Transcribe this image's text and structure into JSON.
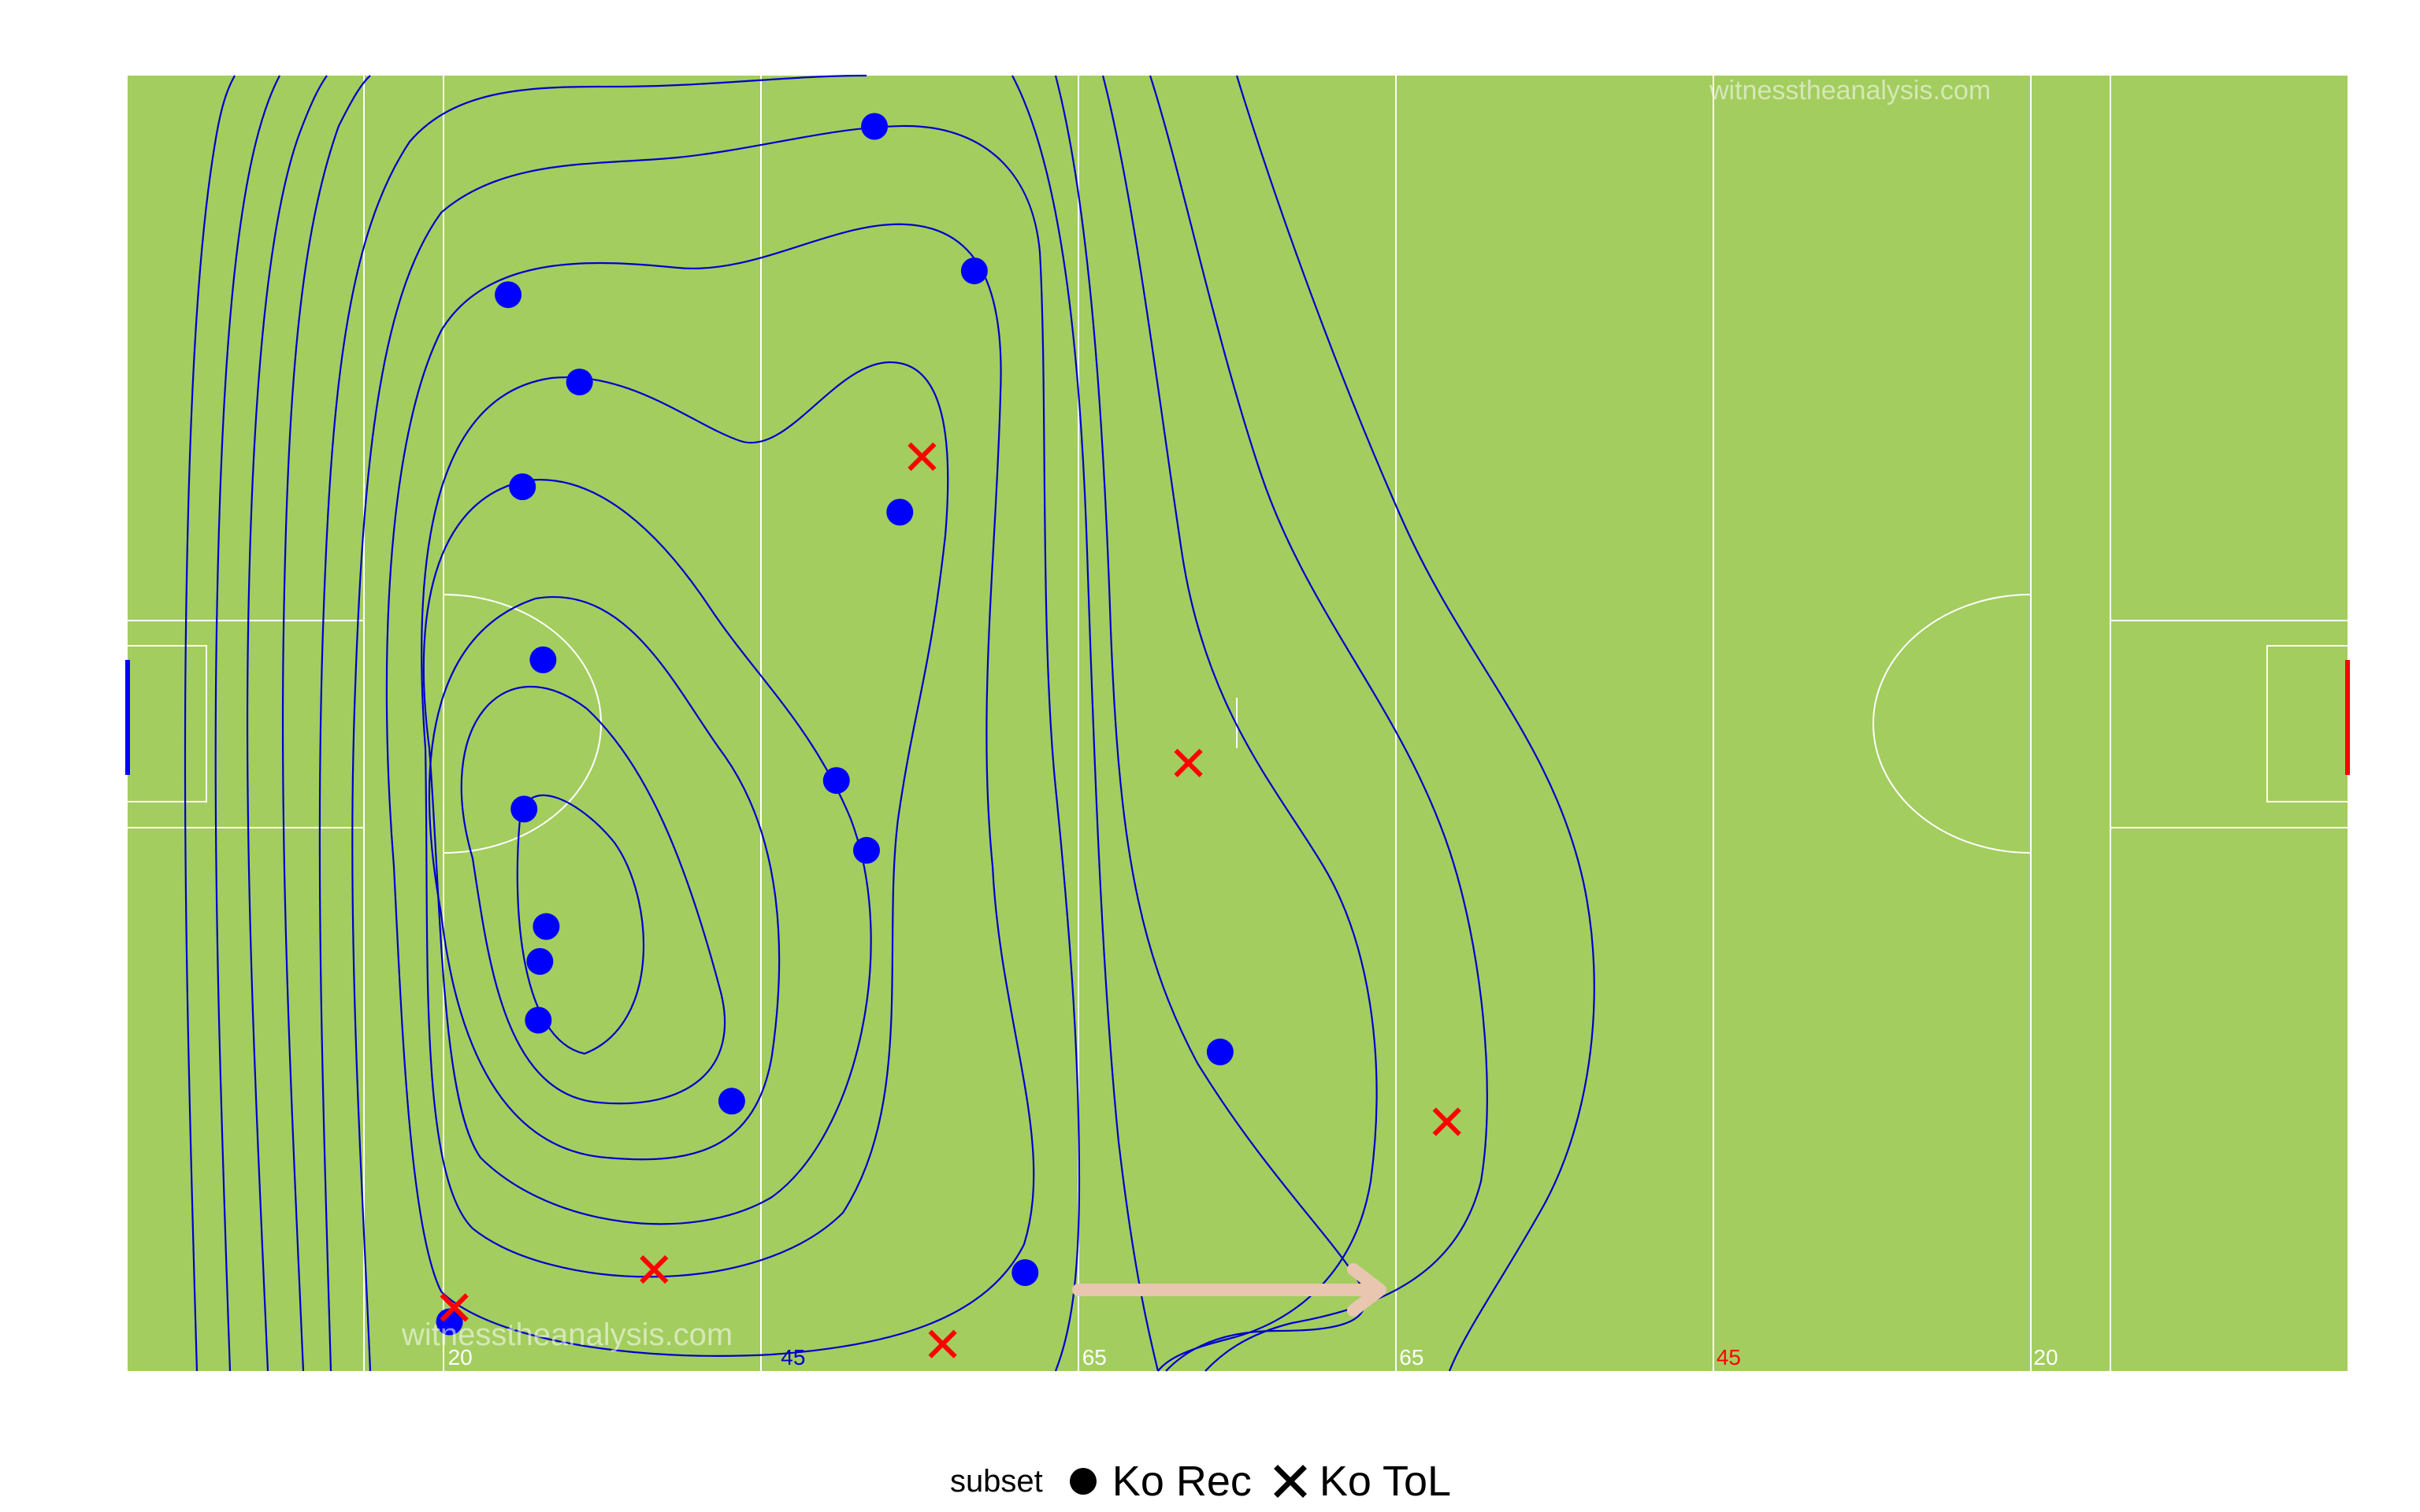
{
  "chart_data": {
    "type": "scatter",
    "title": "",
    "xlabel": "",
    "ylabel": "",
    "xlim": [
      0,
      140
    ],
    "ylim": [
      0,
      81.6
    ],
    "grid": false,
    "legend_position": "bottom",
    "legend_title": "subset",
    "colors": {
      "pitch": "#a3cd5e",
      "lines": "#ffffff",
      "contour": "#0000cc",
      "ko_rec": "#0000ff",
      "ko_tol": "#ff0000",
      "arrow": "#e8c6b0",
      "left_goal": "#0000ff",
      "right_goal": "#ff0000"
    },
    "pitch_labels": [
      {
        "text": "20",
        "x": 20,
        "color": "#ffffff"
      },
      {
        "text": "45",
        "x": 41,
        "color": "#0000cc"
      },
      {
        "text": "65",
        "x": 60,
        "color": "#ffffff"
      },
      {
        "text": "65",
        "x": 80,
        "color": "#ffffff"
      },
      {
        "text": "45",
        "x": 100,
        "color": "#ff0000"
      },
      {
        "text": "20",
        "x": 120,
        "color": "#ffffff"
      }
    ],
    "watermark": "witnesstheanalysis.com",
    "series": [
      {
        "name": "Ko Rec",
        "marker": "circle",
        "points": [
          {
            "x": 47.1,
            "y": 78.4
          },
          {
            "x": 53.4,
            "y": 69.3
          },
          {
            "x": 24.0,
            "y": 67.8
          },
          {
            "x": 28.5,
            "y": 62.3
          },
          {
            "x": 24.9,
            "y": 55.7
          },
          {
            "x": 48.7,
            "y": 54.1
          },
          {
            "x": 26.2,
            "y": 44.8
          },
          {
            "x": 44.7,
            "y": 37.2
          },
          {
            "x": 25.0,
            "y": 35.4
          },
          {
            "x": 46.6,
            "y": 32.8
          },
          {
            "x": 26.4,
            "y": 28.0
          },
          {
            "x": 26.0,
            "y": 25.8
          },
          {
            "x": 25.9,
            "y": 22.1
          },
          {
            "x": 68.9,
            "y": 20.1
          },
          {
            "x": 38.1,
            "y": 17.0
          },
          {
            "x": 56.6,
            "y": 6.2
          },
          {
            "x": 20.3,
            "y": 3.1
          }
        ]
      },
      {
        "name": "Ko ToL",
        "marker": "x",
        "points": [
          {
            "x": 50.1,
            "y": 57.6
          },
          {
            "x": 66.9,
            "y": 38.3
          },
          {
            "x": 83.2,
            "y": 15.7
          },
          {
            "x": 33.2,
            "y": 6.4
          },
          {
            "x": 20.6,
            "y": 4.0
          },
          {
            "x": 51.4,
            "y": 1.7
          }
        ]
      }
    ],
    "legend": [
      {
        "label": "Ko Rec",
        "marker": "circle"
      },
      {
        "label": "Ko ToL",
        "marker": "x"
      }
    ]
  }
}
